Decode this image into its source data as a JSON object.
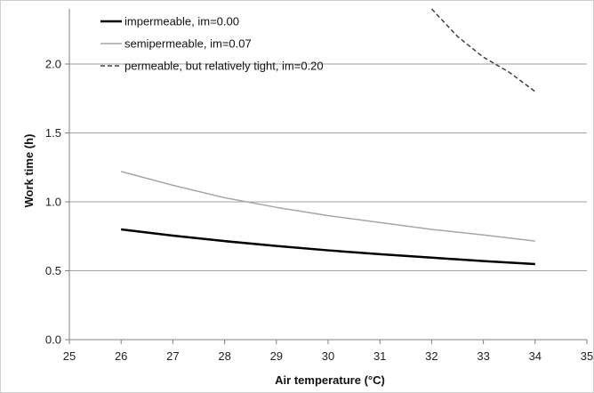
{
  "chart_data": {
    "type": "line",
    "title": "",
    "xlabel": "Air temperature (°C)",
    "ylabel": "Work time (h)",
    "xlim": [
      25,
      35
    ],
    "ylim": [
      0,
      2.4
    ],
    "x_ticks": [
      "25",
      "26",
      "27",
      "28",
      "29",
      "30",
      "31",
      "32",
      "33",
      "34",
      "35"
    ],
    "y_ticks": [
      "0.0",
      "0.5",
      "1.0",
      "1.5",
      "2.0"
    ],
    "grid": "horizontal",
    "legend_position": "top-left",
    "series": [
      {
        "name": "impermeable, im=0.00",
        "color": "#000000",
        "style": "solid",
        "x": [
          26,
          27,
          28,
          29,
          30,
          31,
          32,
          33,
          34
        ],
        "y": [
          0.8,
          0.755,
          0.715,
          0.68,
          0.648,
          0.62,
          0.595,
          0.57,
          0.548
        ]
      },
      {
        "name": "semipermeable, im=0.07",
        "color": "#a6a6a6",
        "style": "solid",
        "x": [
          26,
          27,
          28,
          29,
          30,
          31,
          32,
          33,
          34
        ],
        "y": [
          1.22,
          1.12,
          1.03,
          0.96,
          0.9,
          0.85,
          0.8,
          0.76,
          0.715
        ]
      },
      {
        "name": "permeable, but relatively tight, im=0.20",
        "color": "#404040",
        "style": "dashed",
        "x": [
          32,
          32.5,
          33,
          33.5,
          34
        ],
        "y": [
          2.4,
          2.2,
          2.05,
          1.94,
          1.8
        ]
      }
    ]
  }
}
